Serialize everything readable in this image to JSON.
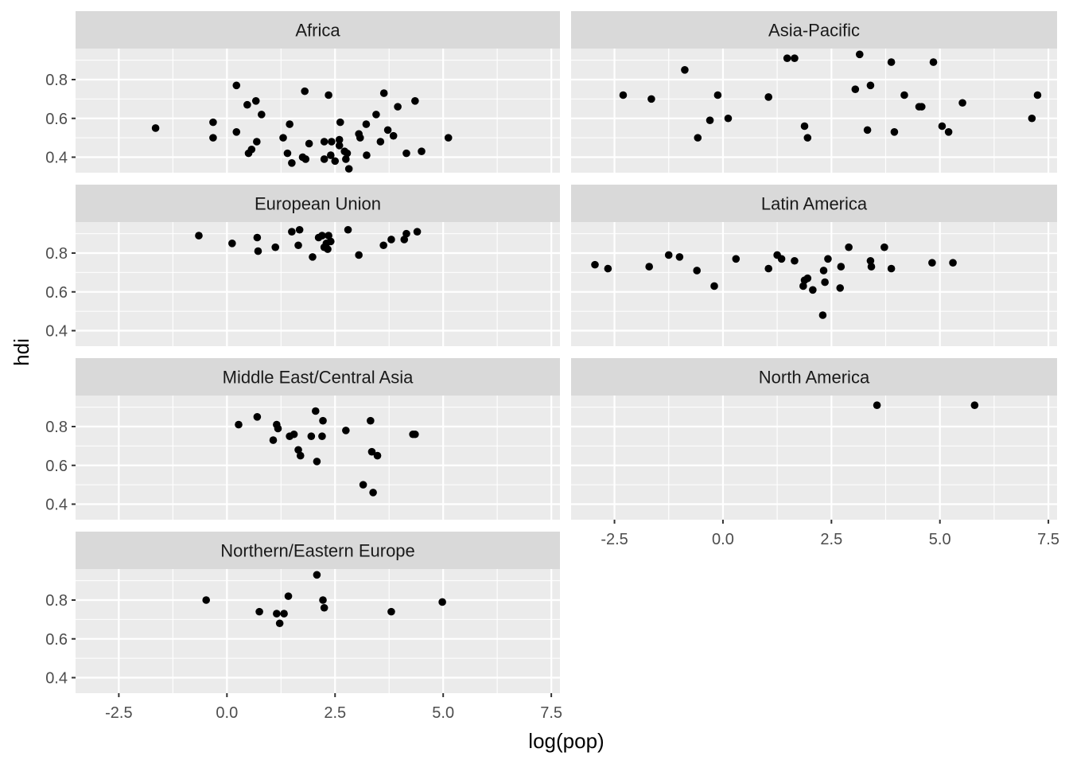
{
  "chart_data": {
    "type": "scatter",
    "xlabel": "log(pop)",
    "ylabel": "hdi",
    "xlim": [
      -3.5,
      7.7
    ],
    "ylim": [
      0.32,
      0.96
    ],
    "x_ticks": [
      -2.5,
      0.0,
      2.5,
      5.0,
      7.5
    ],
    "x_tick_labels": [
      "-2.5",
      "0.0",
      "2.5",
      "5.0",
      "7.5"
    ],
    "y_ticks": [
      0.4,
      0.6,
      0.8
    ],
    "y_tick_labels": [
      "0.4",
      "0.6",
      "0.8"
    ],
    "grid": true,
    "facets": [
      {
        "label": "Africa",
        "points": [
          [
            -1.65,
            0.55
          ],
          [
            -0.32,
            0.58
          ],
          [
            -0.32,
            0.5
          ],
          [
            0.22,
            0.77
          ],
          [
            0.22,
            0.53
          ],
          [
            0.47,
            0.67
          ],
          [
            0.5,
            0.42
          ],
          [
            0.57,
            0.44
          ],
          [
            0.67,
            0.69
          ],
          [
            0.69,
            0.48
          ],
          [
            0.8,
            0.62
          ],
          [
            1.3,
            0.5
          ],
          [
            1.4,
            0.42
          ],
          [
            1.45,
            0.57
          ],
          [
            1.5,
            0.37
          ],
          [
            1.75,
            0.4
          ],
          [
            1.8,
            0.74
          ],
          [
            1.82,
            0.39
          ],
          [
            1.9,
            0.47
          ],
          [
            2.25,
            0.39
          ],
          [
            2.25,
            0.48
          ],
          [
            2.35,
            0.72
          ],
          [
            2.4,
            0.41
          ],
          [
            2.42,
            0.48
          ],
          [
            2.5,
            0.38
          ],
          [
            2.6,
            0.49
          ],
          [
            2.6,
            0.46
          ],
          [
            2.62,
            0.58
          ],
          [
            2.72,
            0.43
          ],
          [
            2.75,
            0.39
          ],
          [
            2.78,
            0.42
          ],
          [
            2.82,
            0.34
          ],
          [
            3.05,
            0.52
          ],
          [
            3.08,
            0.5
          ],
          [
            3.22,
            0.57
          ],
          [
            3.23,
            0.41
          ],
          [
            3.45,
            0.62
          ],
          [
            3.55,
            0.48
          ],
          [
            3.63,
            0.73
          ],
          [
            3.72,
            0.54
          ],
          [
            3.85,
            0.51
          ],
          [
            3.95,
            0.66
          ],
          [
            4.15,
            0.42
          ],
          [
            4.35,
            0.69
          ],
          [
            4.5,
            0.43
          ],
          [
            5.12,
            0.5
          ]
        ]
      },
      {
        "label": "Asia-Pacific",
        "points": [
          [
            -2.3,
            0.72
          ],
          [
            -1.65,
            0.7
          ],
          [
            -0.88,
            0.85
          ],
          [
            -0.58,
            0.5
          ],
          [
            -0.3,
            0.59
          ],
          [
            -0.12,
            0.72
          ],
          [
            0.12,
            0.6
          ],
          [
            1.05,
            0.71
          ],
          [
            1.48,
            0.91
          ],
          [
            1.65,
            0.91
          ],
          [
            1.88,
            0.56
          ],
          [
            1.95,
            0.5
          ],
          [
            3.05,
            0.75
          ],
          [
            3.15,
            0.93
          ],
          [
            3.33,
            0.54
          ],
          [
            3.4,
            0.77
          ],
          [
            3.88,
            0.89
          ],
          [
            3.95,
            0.53
          ],
          [
            4.18,
            0.72
          ],
          [
            4.52,
            0.66
          ],
          [
            4.58,
            0.66
          ],
          [
            4.85,
            0.89
          ],
          [
            5.05,
            0.56
          ],
          [
            5.2,
            0.53
          ],
          [
            5.52,
            0.68
          ],
          [
            7.12,
            0.6
          ],
          [
            7.25,
            0.72
          ]
        ]
      },
      {
        "label": "European Union",
        "points": [
          [
            -0.65,
            0.89
          ],
          [
            0.12,
            0.85
          ],
          [
            0.7,
            0.88
          ],
          [
            0.72,
            0.81
          ],
          [
            1.12,
            0.83
          ],
          [
            1.5,
            0.91
          ],
          [
            1.68,
            0.92
          ],
          [
            1.65,
            0.84
          ],
          [
            1.98,
            0.78
          ],
          [
            2.12,
            0.88
          ],
          [
            2.2,
            0.89
          ],
          [
            2.25,
            0.83
          ],
          [
            2.3,
            0.85
          ],
          [
            2.33,
            0.82
          ],
          [
            2.35,
            0.89
          ],
          [
            2.4,
            0.86
          ],
          [
            2.8,
            0.92
          ],
          [
            3.05,
            0.79
          ],
          [
            3.62,
            0.84
          ],
          [
            3.8,
            0.87
          ],
          [
            4.1,
            0.87
          ],
          [
            4.15,
            0.9
          ],
          [
            4.4,
            0.91
          ]
        ]
      },
      {
        "label": "Latin America",
        "points": [
          [
            -2.95,
            0.74
          ],
          [
            -2.65,
            0.72
          ],
          [
            -1.7,
            0.73
          ],
          [
            -1.25,
            0.79
          ],
          [
            -1.0,
            0.78
          ],
          [
            -0.6,
            0.71
          ],
          [
            -0.2,
            0.63
          ],
          [
            0.3,
            0.77
          ],
          [
            1.05,
            0.72
          ],
          [
            1.25,
            0.79
          ],
          [
            1.35,
            0.77
          ],
          [
            1.65,
            0.76
          ],
          [
            1.85,
            0.63
          ],
          [
            1.88,
            0.66
          ],
          [
            1.95,
            0.67
          ],
          [
            2.07,
            0.61
          ],
          [
            2.3,
            0.48
          ],
          [
            2.32,
            0.71
          ],
          [
            2.35,
            0.65
          ],
          [
            2.42,
            0.77
          ],
          [
            2.7,
            0.62
          ],
          [
            2.72,
            0.73
          ],
          [
            2.9,
            0.83
          ],
          [
            3.4,
            0.76
          ],
          [
            3.42,
            0.73
          ],
          [
            3.72,
            0.83
          ],
          [
            3.88,
            0.72
          ],
          [
            4.82,
            0.75
          ],
          [
            5.3,
            0.75
          ]
        ]
      },
      {
        "label": "Middle East/Central Asia",
        "points": [
          [
            0.27,
            0.81
          ],
          [
            0.7,
            0.85
          ],
          [
            1.07,
            0.73
          ],
          [
            1.15,
            0.81
          ],
          [
            1.18,
            0.79
          ],
          [
            1.45,
            0.75
          ],
          [
            1.55,
            0.76
          ],
          [
            1.65,
            0.68
          ],
          [
            1.7,
            0.65
          ],
          [
            1.95,
            0.75
          ],
          [
            2.05,
            0.88
          ],
          [
            2.08,
            0.62
          ],
          [
            2.2,
            0.75
          ],
          [
            2.22,
            0.83
          ],
          [
            2.75,
            0.78
          ],
          [
            3.15,
            0.5
          ],
          [
            3.32,
            0.83
          ],
          [
            3.35,
            0.67
          ],
          [
            3.38,
            0.46
          ],
          [
            3.48,
            0.65
          ],
          [
            4.3,
            0.76
          ],
          [
            4.35,
            0.76
          ]
        ]
      },
      {
        "label": "North America",
        "points": [
          [
            3.55,
            0.91
          ],
          [
            5.8,
            0.91
          ]
        ]
      },
      {
        "label": "Northern/Eastern Europe",
        "points": [
          [
            -0.48,
            0.8
          ],
          [
            0.75,
            0.74
          ],
          [
            1.15,
            0.73
          ],
          [
            1.22,
            0.68
          ],
          [
            1.32,
            0.73
          ],
          [
            1.42,
            0.82
          ],
          [
            2.08,
            0.93
          ],
          [
            2.22,
            0.8
          ],
          [
            2.25,
            0.76
          ],
          [
            3.8,
            0.74
          ],
          [
            4.98,
            0.79
          ]
        ]
      }
    ]
  }
}
